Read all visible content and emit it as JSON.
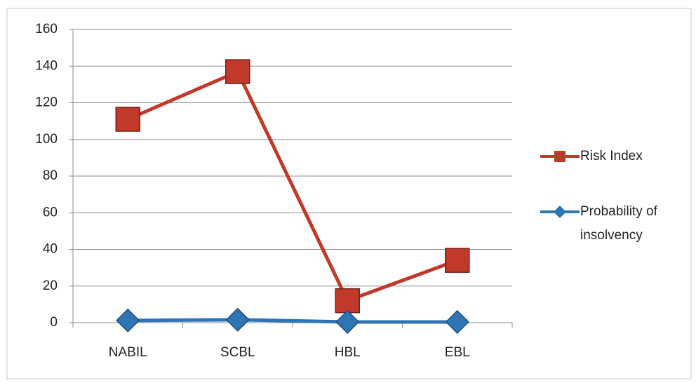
{
  "chart_data": {
    "type": "line",
    "categories": [
      "NABIL",
      "SCBL",
      "HBL",
      "EBL"
    ],
    "series": [
      {
        "name": "Risk Index",
        "color": "#c0392b",
        "marker": "square",
        "values": [
          111,
          137,
          12,
          34
        ]
      },
      {
        "name": "Probability of insolvency",
        "color": "#2e75b6",
        "marker": "diamond",
        "values": [
          1.2,
          1.6,
          0.4,
          0.4
        ]
      }
    ],
    "ylim": [
      0,
      160
    ],
    "yticks": [
      0,
      20,
      40,
      60,
      80,
      100,
      120,
      140,
      160
    ],
    "grid": true,
    "legend": "right"
  }
}
